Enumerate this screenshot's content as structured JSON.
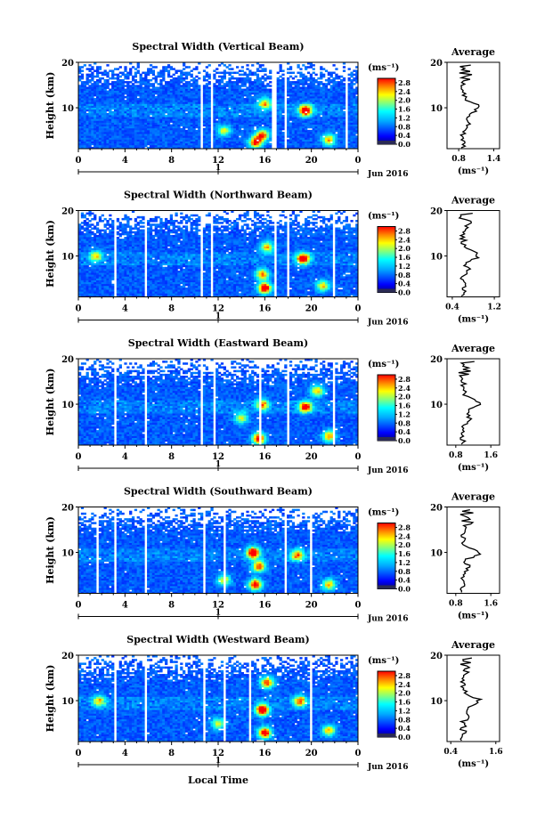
{
  "chart_data": [
    {
      "type": "heatmap",
      "title": "Spectral Width (Vertical Beam)",
      "ylabel": "Height (km)",
      "x_ticks": [
        "0",
        "4",
        "8",
        "12",
        "16",
        "20",
        "0"
      ],
      "x_range": [
        0,
        24
      ],
      "y_ticks": [
        "20",
        "10"
      ],
      "y_range": [
        1,
        20
      ],
      "date_label": "Jun 2016",
      "day_marker": "1",
      "colorbar": {
        "unit": "(ms⁻¹)",
        "ticks": [
          "2.8",
          "2.4",
          "2.0",
          "1.6",
          "1.2",
          "0.8",
          "0.4",
          "0.0"
        ],
        "range": [
          0.0,
          3.0
        ]
      },
      "average_profile": {
        "title": "Average",
        "xlabel": "(ms⁻¹)",
        "x_ticks": [
          "0.8",
          "1.4"
        ],
        "xlim": [
          0.6,
          1.5
        ],
        "y_ticks": [
          "20",
          "10"
        ]
      },
      "data_gaps_hours": [
        [
          10.4,
          10.6
        ],
        [
          11.4,
          11.6
        ],
        [
          16.6,
          17.0
        ],
        [
          17.6,
          17.9
        ],
        [
          23.0,
          23.2
        ]
      ],
      "hotspots": [
        [
          15.2,
          2.5,
          2.4
        ],
        [
          15.8,
          4.0,
          2.2
        ],
        [
          16.0,
          11.0,
          1.8
        ],
        [
          19.5,
          9.5,
          2.8
        ],
        [
          21.5,
          3.0,
          1.9
        ],
        [
          12.5,
          5.0,
          1.5
        ]
      ]
    },
    {
      "type": "heatmap",
      "title": "Spectral Width (Northward Beam)",
      "ylabel": "Height (km)",
      "x_ticks": [
        "0",
        "4",
        "8",
        "12",
        "16",
        "20",
        "0"
      ],
      "x_range": [
        0,
        24
      ],
      "y_ticks": [
        "20",
        "10"
      ],
      "y_range": [
        1,
        20
      ],
      "date_label": "Jun 2016",
      "day_marker": "1",
      "colorbar": {
        "unit": "(ms⁻¹)",
        "ticks": [
          "2.8",
          "2.4",
          "2.0",
          "1.6",
          "1.2",
          "0.8",
          "0.4",
          "0.0"
        ],
        "range": [
          0.0,
          3.0
        ]
      },
      "average_profile": {
        "title": "Average",
        "xlabel": "(ms⁻¹)",
        "x_ticks": [
          "0.4",
          "1.2"
        ],
        "xlim": [
          0.3,
          1.3
        ],
        "y_ticks": [
          "20",
          "10"
        ]
      },
      "data_gaps_hours": [
        [
          3.0,
          3.2
        ],
        [
          5.6,
          5.8
        ],
        [
          10.4,
          10.7
        ],
        [
          11.4,
          11.6
        ],
        [
          16.8,
          17.0
        ],
        [
          18.0,
          18.2
        ],
        [
          21.8,
          22.0
        ]
      ],
      "hotspots": [
        [
          16.0,
          3.0,
          2.8
        ],
        [
          15.8,
          6.0,
          2.0
        ],
        [
          16.2,
          12.0,
          1.8
        ],
        [
          19.3,
          9.5,
          2.7
        ],
        [
          1.5,
          10.0,
          1.6
        ],
        [
          21.0,
          3.5,
          1.7
        ]
      ]
    },
    {
      "type": "heatmap",
      "title": "Spectral Width (Eastward Beam)",
      "ylabel": "Height (km)",
      "x_ticks": [
        "0",
        "4",
        "8",
        "12",
        "16",
        "20",
        "0"
      ],
      "x_range": [
        0,
        24
      ],
      "y_ticks": [
        "20",
        "10"
      ],
      "y_range": [
        1,
        20
      ],
      "date_label": "Jun 2016",
      "day_marker": "1",
      "colorbar": {
        "unit": "(ms⁻¹)",
        "ticks": [
          "2.8",
          "2.4",
          "2.0",
          "1.6",
          "1.2",
          "0.8",
          "0.4",
          "0.0"
        ],
        "range": [
          0.0,
          3.0
        ]
      },
      "average_profile": {
        "title": "Average",
        "xlabel": "(ms⁻¹)",
        "x_ticks": [
          "0.8",
          "1.6"
        ],
        "xlim": [
          0.6,
          1.8
        ],
        "y_ticks": [
          "20",
          "10"
        ]
      },
      "data_gaps_hours": [
        [
          3.0,
          3.2
        ],
        [
          5.6,
          5.8
        ],
        [
          10.4,
          10.7
        ],
        [
          11.5,
          11.7
        ],
        [
          15.6,
          15.8
        ],
        [
          17.8,
          18.0
        ],
        [
          21.8,
          22.0
        ]
      ],
      "hotspots": [
        [
          15.5,
          2.5,
          2.6
        ],
        [
          15.8,
          10.0,
          2.0
        ],
        [
          19.5,
          9.5,
          2.6
        ],
        [
          21.5,
          3.0,
          1.9
        ],
        [
          20.5,
          13.0,
          1.8
        ],
        [
          14.0,
          7.0,
          1.5
        ]
      ]
    },
    {
      "type": "heatmap",
      "title": "Spectral Width (Southward Beam)",
      "ylabel": "Height (km)",
      "x_ticks": [
        "0",
        "4",
        "8",
        "12",
        "16",
        "20",
        "0"
      ],
      "x_range": [
        0,
        24
      ],
      "y_ticks": [
        "20",
        "10"
      ],
      "y_range": [
        1,
        20
      ],
      "date_label": "Jun 2016",
      "day_marker": "1",
      "colorbar": {
        "unit": "(ms⁻¹)",
        "ticks": [
          "2.8",
          "2.4",
          "2.0",
          "1.6",
          "1.2",
          "0.8",
          "0.4",
          "0.0"
        ],
        "range": [
          0.0,
          3.0
        ]
      },
      "average_profile": {
        "title": "Average",
        "xlabel": "(ms⁻¹)",
        "x_ticks": [
          "0.8",
          "1.6"
        ],
        "xlim": [
          0.6,
          1.8
        ],
        "y_ticks": [
          "20",
          "10"
        ]
      },
      "data_gaps_hours": [
        [
          1.6,
          1.8
        ],
        [
          3.0,
          3.2
        ],
        [
          5.6,
          5.8
        ],
        [
          10.6,
          10.8
        ],
        [
          12.4,
          12.6
        ],
        [
          17.6,
          17.8
        ],
        [
          19.8,
          20.0
        ]
      ],
      "hotspots": [
        [
          15.0,
          10.0,
          2.8
        ],
        [
          15.2,
          3.0,
          2.6
        ],
        [
          15.5,
          7.0,
          2.2
        ],
        [
          18.8,
          9.5,
          2.0
        ],
        [
          21.5,
          3.0,
          1.8
        ],
        [
          12.5,
          4.0,
          1.6
        ]
      ]
    },
    {
      "type": "heatmap",
      "title": "Spectral Width (Westward Beam)",
      "ylabel": "Height (km)",
      "x_ticks": [
        "0",
        "4",
        "8",
        "12",
        "16",
        "20",
        "0"
      ],
      "x_range": [
        0,
        24
      ],
      "y_ticks": [
        "20",
        "10"
      ],
      "y_range": [
        1,
        20
      ],
      "date_label": "Jun 2016",
      "day_marker": "1",
      "colorbar": {
        "unit": "(ms⁻¹)",
        "ticks": [
          "2.8",
          "2.4",
          "2.0",
          "1.6",
          "1.2",
          "0.8",
          "0.4",
          "0.0"
        ],
        "range": [
          0.0,
          3.0
        ]
      },
      "average_profile": {
        "title": "Average",
        "xlabel": "(ms⁻¹)",
        "x_ticks": [
          "0.4",
          "1.6"
        ],
        "xlim": [
          0.3,
          1.7
        ],
        "y_ticks": [
          "20",
          "10"
        ]
      },
      "data_gaps_hours": [
        [
          3.0,
          3.2
        ],
        [
          5.6,
          5.8
        ],
        [
          10.6,
          10.8
        ],
        [
          12.4,
          12.6
        ],
        [
          14.6,
          14.8
        ],
        [
          19.8,
          20.0
        ]
      ],
      "hotspots": [
        [
          15.8,
          8.0,
          2.9
        ],
        [
          16.0,
          3.0,
          2.6
        ],
        [
          16.2,
          14.0,
          2.2
        ],
        [
          19.0,
          10.0,
          2.0
        ],
        [
          21.5,
          3.5,
          1.8
        ],
        [
          1.8,
          10.0,
          1.6
        ],
        [
          12.0,
          5.0,
          1.5
        ]
      ]
    }
  ],
  "xlabel": "Local Time"
}
